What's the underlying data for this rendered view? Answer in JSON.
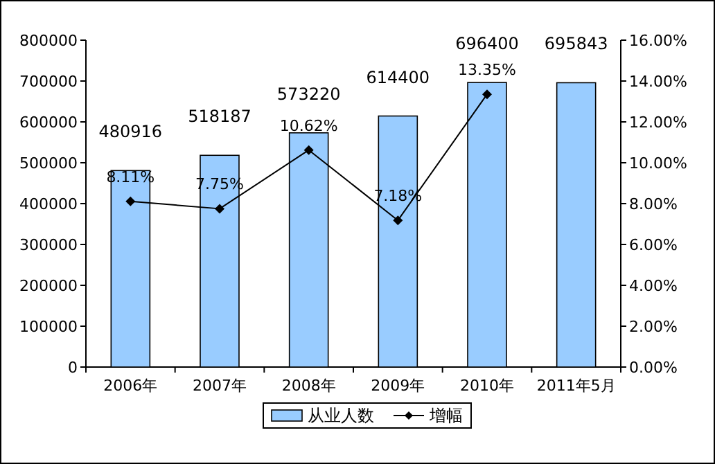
{
  "chart_data": {
    "type": "bar",
    "categories": [
      "2006年",
      "2007年",
      "2008年",
      "2009年",
      "2010年",
      "2011年5月"
    ],
    "series": [
      {
        "name": "从业人数",
        "type": "bar",
        "color": "#99ccff",
        "values": [
          480916,
          518187,
          573220,
          614400,
          696400,
          695843
        ],
        "value_labels": [
          "480916",
          "518187",
          "573220",
          "614400",
          "696400",
          "695843"
        ]
      },
      {
        "name": "增幅",
        "type": "line",
        "axis": "y2",
        "color": "#000000",
        "marker": "diamond",
        "values": [
          8.11,
          7.75,
          10.62,
          7.18,
          13.35,
          null
        ],
        "value_labels": [
          "8.11%",
          "7.75%",
          "10.62%",
          "7.18%",
          "13.35%",
          null
        ]
      }
    ],
    "ylim": [
      0,
      800000
    ],
    "yticks": [
      0,
      100000,
      200000,
      300000,
      400000,
      500000,
      600000,
      700000,
      800000
    ],
    "y2lim": [
      0,
      16
    ],
    "y2ticks": [
      {
        "value": 0,
        "label": "0.00%"
      },
      {
        "value": 2,
        "label": "2.00%"
      },
      {
        "value": 4,
        "label": "4.00%"
      },
      {
        "value": 6,
        "label": "6.00%"
      },
      {
        "value": 8,
        "label": "8.00%"
      },
      {
        "value": 10,
        "label": "10.00%"
      },
      {
        "value": 12,
        "label": "12.00%"
      },
      {
        "value": 14,
        "label": "14.00%"
      },
      {
        "value": 16,
        "label": "16.00%"
      }
    ],
    "legend": "bottom",
    "grid": false
  }
}
